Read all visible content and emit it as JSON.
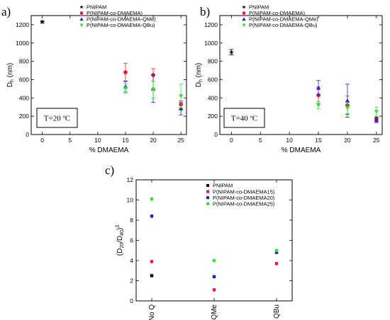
{
  "colors": {
    "PNIPAM": "#000000",
    "DMAEMA": "#e8192c",
    "QMe": "#1f1fd0",
    "QBu": "#2ee82e"
  },
  "chart_data": [
    {
      "type": "scatter",
      "panel_label": "a)",
      "annotation": "T=20 ºC",
      "xlabel": "% DMAEMA",
      "ylabel_main": "D",
      "ylabel_sub": "h",
      "ylabel_unit": " (nm)",
      "xlim": [
        -2,
        26
      ],
      "ylim": [
        0,
        1300
      ],
      "xticks": [
        0,
        5,
        10,
        15,
        20,
        25
      ],
      "yticks": [
        0,
        200,
        400,
        600,
        800,
        1000,
        1200
      ],
      "legend_position": "top-center",
      "series": [
        {
          "name": "PNIPAM",
          "marker": "star",
          "color_key": "PNIPAM",
          "points": [
            {
              "x": 0,
              "y": 1230,
              "err": 12
            }
          ]
        },
        {
          "name": "P(NIPAM-co-DMAEMA)",
          "marker": "circle",
          "color_key": "DMAEMA",
          "points": [
            {
              "x": 15,
              "y": 680,
              "err": 100
            },
            {
              "x": 20,
              "y": 650,
              "err": 70
            },
            {
              "x": 25,
              "y": 330,
              "err": 40
            }
          ]
        },
        {
          "name": "P(NIPAM-co-DMAEMA-QMe)",
          "marker": "triangle-up",
          "color_key": "QMe",
          "points": [
            {
              "x": 15,
              "y": 525,
              "err": 60
            },
            {
              "x": 20,
              "y": 500,
              "err": 150
            },
            {
              "x": 25,
              "y": 285,
              "err": 70
            }
          ]
        },
        {
          "name": "P(NIPAM-co-DMAEMA-QBu)",
          "marker": "triangle-down",
          "color_key": "QBu",
          "points": [
            {
              "x": 15,
              "y": 500,
              "err": 50
            },
            {
              "x": 20,
              "y": 490,
              "err": 90
            },
            {
              "x": 25,
              "y": 420,
              "err": 130
            }
          ]
        }
      ]
    },
    {
      "type": "scatter",
      "panel_label": "b)",
      "annotation": "T=40 ºC",
      "xlabel": "% DMAEMA",
      "ylabel_main": "D",
      "ylabel_sub": "h",
      "ylabel_unit": " (nm)",
      "xlim": [
        -2,
        26
      ],
      "ylim": [
        0,
        1300
      ],
      "xticks": [
        0,
        5,
        10,
        15,
        20,
        25
      ],
      "yticks": [
        0,
        200,
        400,
        600,
        800,
        1000,
        1200
      ],
      "legend_position": "top-center",
      "series": [
        {
          "name": "PNIPAM",
          "marker": "star",
          "color_key": "PNIPAM",
          "points": [
            {
              "x": 0,
              "y": 900,
              "err": 30
            }
          ]
        },
        {
          "name": "P(NIPAM-co-DMAEMA)",
          "marker": "circle",
          "color_key": "DMAEMA",
          "points": [
            {
              "x": 15,
              "y": 430,
              "err": 90
            },
            {
              "x": 20,
              "y": 320,
              "err": 100
            },
            {
              "x": 25,
              "y": 170,
              "err": 30
            }
          ]
        },
        {
          "name": "P(NIPAM-co-DMAEMA-QMe)",
          "marker": "triangle-up",
          "color_key": "QMe",
          "points": [
            {
              "x": 15,
              "y": 510,
              "err": 80
            },
            {
              "x": 20,
              "y": 370,
              "err": 180
            },
            {
              "x": 25,
              "y": 160,
              "err": 30
            }
          ]
        },
        {
          "name": "P(NIPAM-co-DMAEMA-QBu)",
          "marker": "triangle-down",
          "color_key": "QBu",
          "points": [
            {
              "x": 15,
              "y": 320,
              "err": 40
            },
            {
              "x": 20,
              "y": 290,
              "err": 60
            },
            {
              "x": 25,
              "y": 250,
              "err": 50
            }
          ]
        }
      ]
    },
    {
      "type": "scatter",
      "panel_label": "c)",
      "ylabel": "(D20/D40)3",
      "ylabel_parts": {
        "open": "(D",
        "sub1": "20",
        "mid": "/D",
        "sub2": "40",
        "close": ")",
        "sup": "3"
      },
      "categories": [
        "No Q",
        "QMe",
        "QBu"
      ],
      "ylim": [
        0,
        12
      ],
      "yticks": [
        0,
        2,
        4,
        6,
        8,
        10,
        12
      ],
      "legend_position": "top-center",
      "series": [
        {
          "name": "PNIPAM",
          "marker": "square",
          "color_key": "PNIPAM",
          "values": [
            2.5,
            null,
            null
          ]
        },
        {
          "name": "P(NIPAM-co-DMAEMA15)",
          "marker": "square",
          "color_key": "DMAEMA",
          "values": [
            3.9,
            1.1,
            3.7
          ]
        },
        {
          "name": "P(NIPAM-co-DMAEMA20)",
          "marker": "square",
          "color_key": "QMe",
          "values": [
            8.4,
            2.4,
            4.8
          ]
        },
        {
          "name": "P(NIPAM-co-DMAEMA25)",
          "marker": "square",
          "color_key": "QBu",
          "values": [
            10.1,
            4.0,
            5.0
          ]
        }
      ]
    }
  ]
}
